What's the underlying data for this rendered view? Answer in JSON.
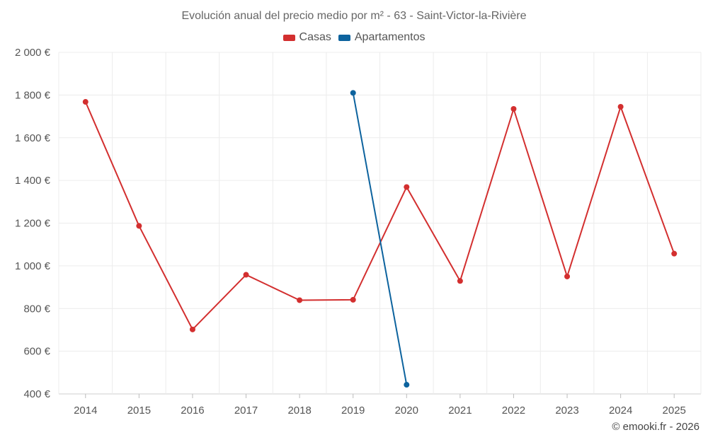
{
  "chart_data": {
    "type": "line",
    "title": "Evolución anual del precio medio por m² - 63 - Saint-Victor-la-Rivière",
    "xlabel": "",
    "ylabel": "",
    "categories": [
      "2014",
      "2015",
      "2016",
      "2017",
      "2018",
      "2019",
      "2020",
      "2021",
      "2022",
      "2023",
      "2024",
      "2025"
    ],
    "y_ticks": [
      "400 €",
      "600 €",
      "800 €",
      "1 000 €",
      "1 200 €",
      "1 400 €",
      "1 600 €",
      "1 800 €",
      "2 000 €"
    ],
    "ylim": [
      400,
      2000
    ],
    "grid": true,
    "legend_position": "top-center",
    "series": [
      {
        "name": "Casas",
        "color": "#d32f2f",
        "values": [
          1768,
          1187,
          702,
          958,
          839,
          841,
          1369,
          929,
          1735,
          950,
          1745,
          1057
        ]
      },
      {
        "name": "Apartamentos",
        "color": "#0d639e",
        "values": [
          null,
          null,
          null,
          null,
          null,
          1810,
          443,
          null,
          null,
          null,
          null,
          null
        ]
      }
    ]
  },
  "credit": "© emooki.fr - 2026"
}
